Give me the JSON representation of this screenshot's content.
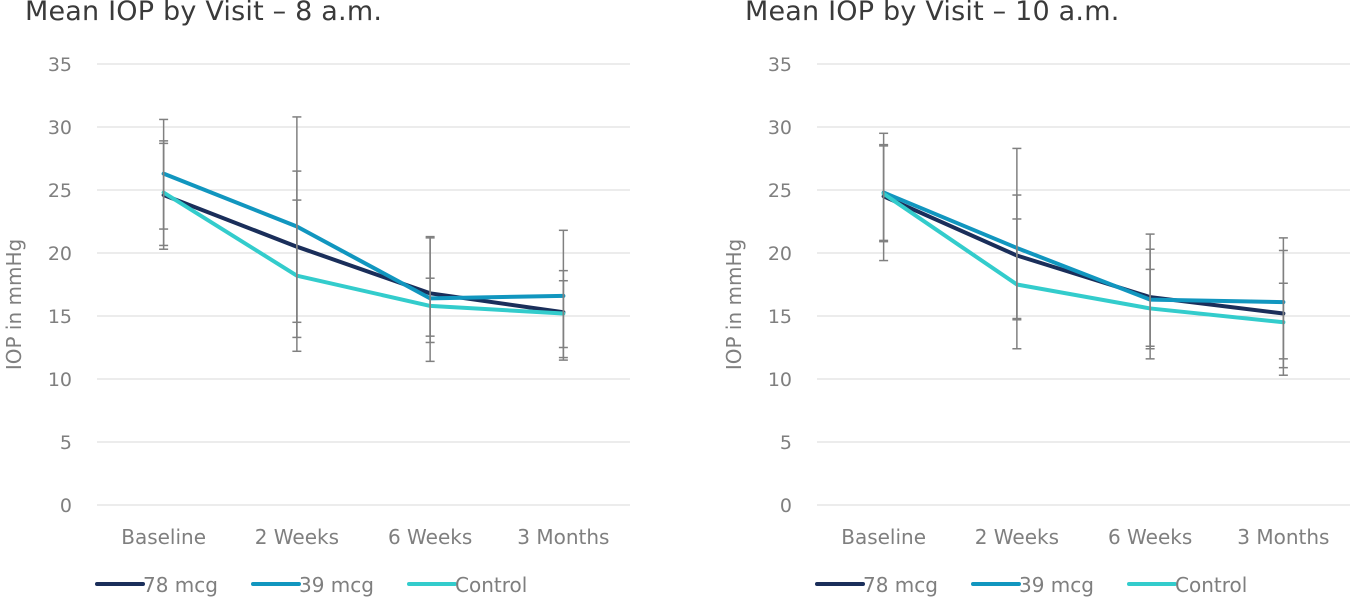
{
  "colors": {
    "series": [
      "#1a2e5a",
      "#1196bf",
      "#33cccc"
    ],
    "gridline": "#d9d9d9",
    "errorbar": "#808080",
    "text": "#7f7f7f",
    "title": "#3a3a3a"
  },
  "chart_data": [
    {
      "type": "line",
      "title": "Mean IOP by Visit – 8 a.m.",
      "xlabel": "",
      "ylabel": "IOP in mmHg",
      "categories": [
        "Baseline",
        "2 Weeks",
        "6 Weeks",
        "3 Months"
      ],
      "ylim": [
        0,
        35
      ],
      "yticks": [
        0,
        5,
        10,
        15,
        20,
        25,
        30,
        35
      ],
      "grid": true,
      "legend": "bottom-left",
      "series": [
        {
          "name": "78 mcg",
          "values": [
            24.6,
            20.5,
            16.8,
            15.3
          ],
          "error_low": [
            20.3,
            12.2,
            12.9,
            11.7
          ],
          "error_high": [
            28.9,
            30.8,
            21.2,
            18.6
          ]
        },
        {
          "name": "39 mcg",
          "values": [
            26.3,
            22.1,
            16.4,
            16.6
          ],
          "error_low": [
            21.9,
            14.5,
            11.4,
            11.5
          ],
          "error_high": [
            30.6,
            26.5,
            21.3,
            21.8
          ]
        },
        {
          "name": "Control",
          "values": [
            24.8,
            18.2,
            15.8,
            15.2
          ],
          "error_low": [
            20.6,
            13.3,
            13.4,
            12.5
          ],
          "error_high": [
            28.7,
            24.2,
            18.0,
            17.8
          ]
        }
      ]
    },
    {
      "type": "line",
      "title": "Mean IOP by Visit – 10 a.m.",
      "xlabel": "",
      "ylabel": "IOP in mmHg",
      "categories": [
        "Baseline",
        "2 Weeks",
        "6 Weeks",
        "3 Months"
      ],
      "ylim": [
        0,
        35
      ],
      "yticks": [
        0,
        5,
        10,
        15,
        20,
        25,
        30,
        35
      ],
      "grid": true,
      "legend": "bottom-left",
      "series": [
        {
          "name": "78 mcg",
          "values": [
            24.5,
            19.8,
            16.5,
            15.2
          ],
          "error_low": [
            19.4,
            12.4,
            11.6,
            10.3
          ],
          "error_high": [
            29.5,
            28.3,
            21.5,
            21.2
          ]
        },
        {
          "name": "39 mcg",
          "values": [
            24.8,
            20.4,
            16.3,
            16.1
          ],
          "error_low": [
            21.0,
            14.7,
            12.4,
            11.6
          ],
          "error_high": [
            28.6,
            24.6,
            20.3,
            20.2
          ]
        },
        {
          "name": "Control",
          "values": [
            24.7,
            17.5,
            15.6,
            14.5
          ],
          "error_low": [
            20.9,
            14.8,
            12.6,
            10.9
          ],
          "error_high": [
            28.5,
            22.7,
            18.7,
            17.6
          ]
        }
      ]
    }
  ]
}
